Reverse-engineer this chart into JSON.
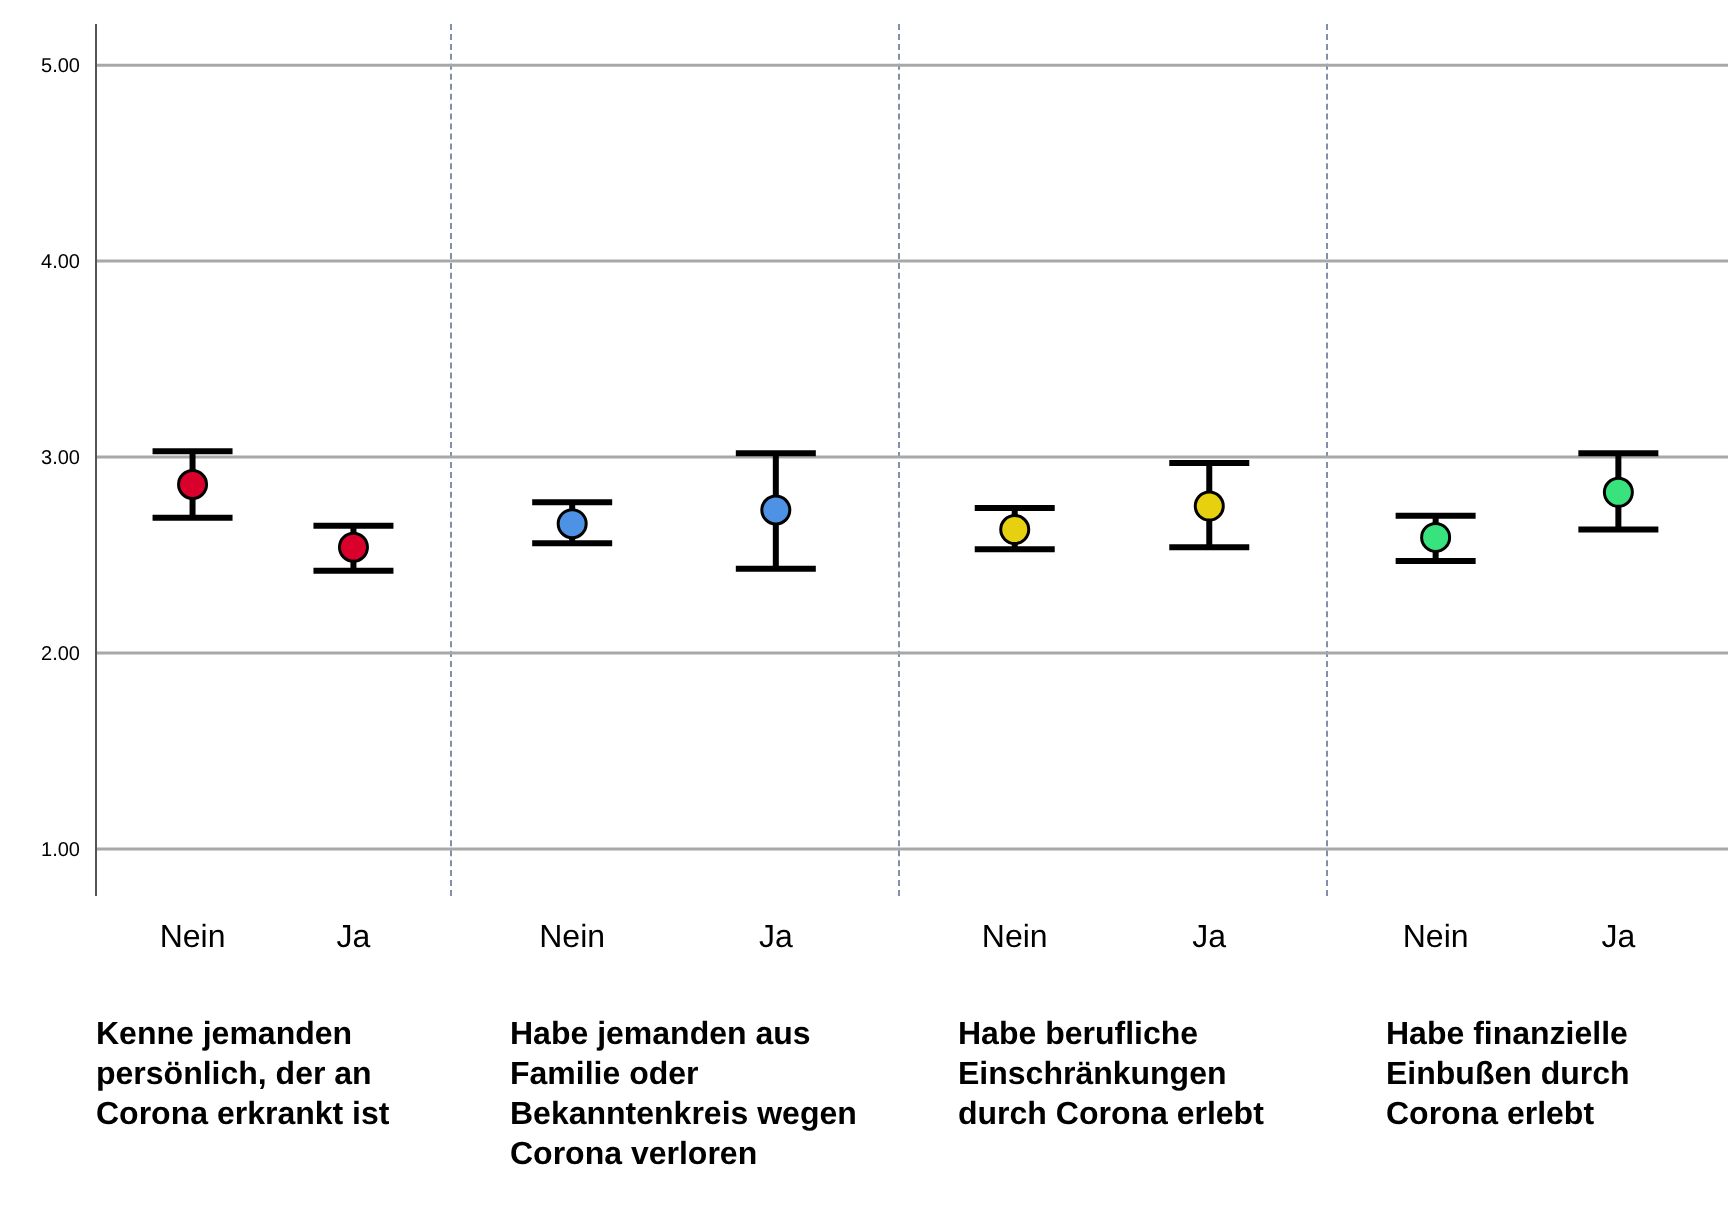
{
  "chart_data": [
    {
      "type": "scatter",
      "categories": [
        "Nein",
        "Ja"
      ],
      "xlabel": "Kenne jemanden persönlich, der an Corona erkrankt ist",
      "series": [
        {
          "color": "#d9002b",
          "values": [
            2.86,
            2.54
          ],
          "errors": [
            [
              2.69,
              3.03
            ],
            [
              2.42,
              2.65
            ]
          ]
        }
      ],
      "ylim": [
        0.76,
        5.21
      ],
      "yticks": [
        {
          "value": 1,
          "label": "1.00"
        },
        {
          "value": 2,
          "label": "2.00"
        },
        {
          "value": 3,
          "label": "3.00"
        },
        {
          "value": 4,
          "label": "4.00"
        },
        {
          "value": 5,
          "label": "5.00"
        }
      ],
      "grid": "y",
      "marker": "circle",
      "legend": false
    },
    {
      "type": "scatter",
      "categories": [
        "Nein",
        "Ja"
      ],
      "xlabel": "Habe jemanden aus Familie oder Bekanntenkreis wegen Corona verloren",
      "series": [
        {
          "color": "#4e92e6",
          "values": [
            2.66,
            2.73
          ],
          "errors": [
            [
              2.56,
              2.77
            ],
            [
              2.43,
              3.02
            ]
          ]
        }
      ],
      "ylim": [
        0.76,
        5.21
      ],
      "yticks": [
        {
          "value": 1,
          "label": null
        },
        {
          "value": 2,
          "label": null
        },
        {
          "value": 3,
          "label": null
        },
        {
          "value": 4,
          "label": null
        },
        {
          "value": 5,
          "label": null
        }
      ],
      "grid": "y",
      "marker": "circle",
      "legend": false,
      "tick_labels": "x"
    },
    {
      "type": "scatter",
      "categories": [
        "Nein",
        "Ja"
      ],
      "xlabel": "Habe berufliche Einschränkungen durch Corona erlebt",
      "series": [
        {
          "color": "#e6d00f",
          "values": [
            2.63,
            2.75
          ],
          "errors": [
            [
              2.53,
              2.74
            ],
            [
              2.54,
              2.97
            ]
          ]
        }
      ],
      "ylim": [
        0.76,
        5.21
      ],
      "yticks": [
        {
          "value": 1,
          "label": null
        },
        {
          "value": 2,
          "label": null
        },
        {
          "value": 3,
          "label": null
        },
        {
          "value": 4,
          "label": null
        },
        {
          "value": 5,
          "label": null
        }
      ],
      "grid": "y",
      "marker": "circle",
      "legend": false,
      "tick_labels": "x"
    },
    {
      "type": "scatter",
      "categories": [
        "Nein",
        "Ja"
      ],
      "xlabel": "Habe finanzielle Einbußen durch Corona erlebt",
      "series": [
        {
          "color": "#38e27d",
          "values": [
            2.59,
            2.82
          ],
          "errors": [
            [
              2.47,
              2.7
            ],
            [
              2.63,
              3.02
            ]
          ]
        }
      ],
      "ylim": [
        0.76,
        5.21
      ],
      "yticks": [
        {
          "value": 1,
          "label": null
        },
        {
          "value": 2,
          "label": null
        },
        {
          "value": 3,
          "label": null
        },
        {
          "value": 4,
          "label": null
        },
        {
          "value": 5,
          "label": null
        }
      ],
      "grid": "y",
      "marker": "circle",
      "legend": false,
      "tick_labels": "x"
    }
  ]
}
